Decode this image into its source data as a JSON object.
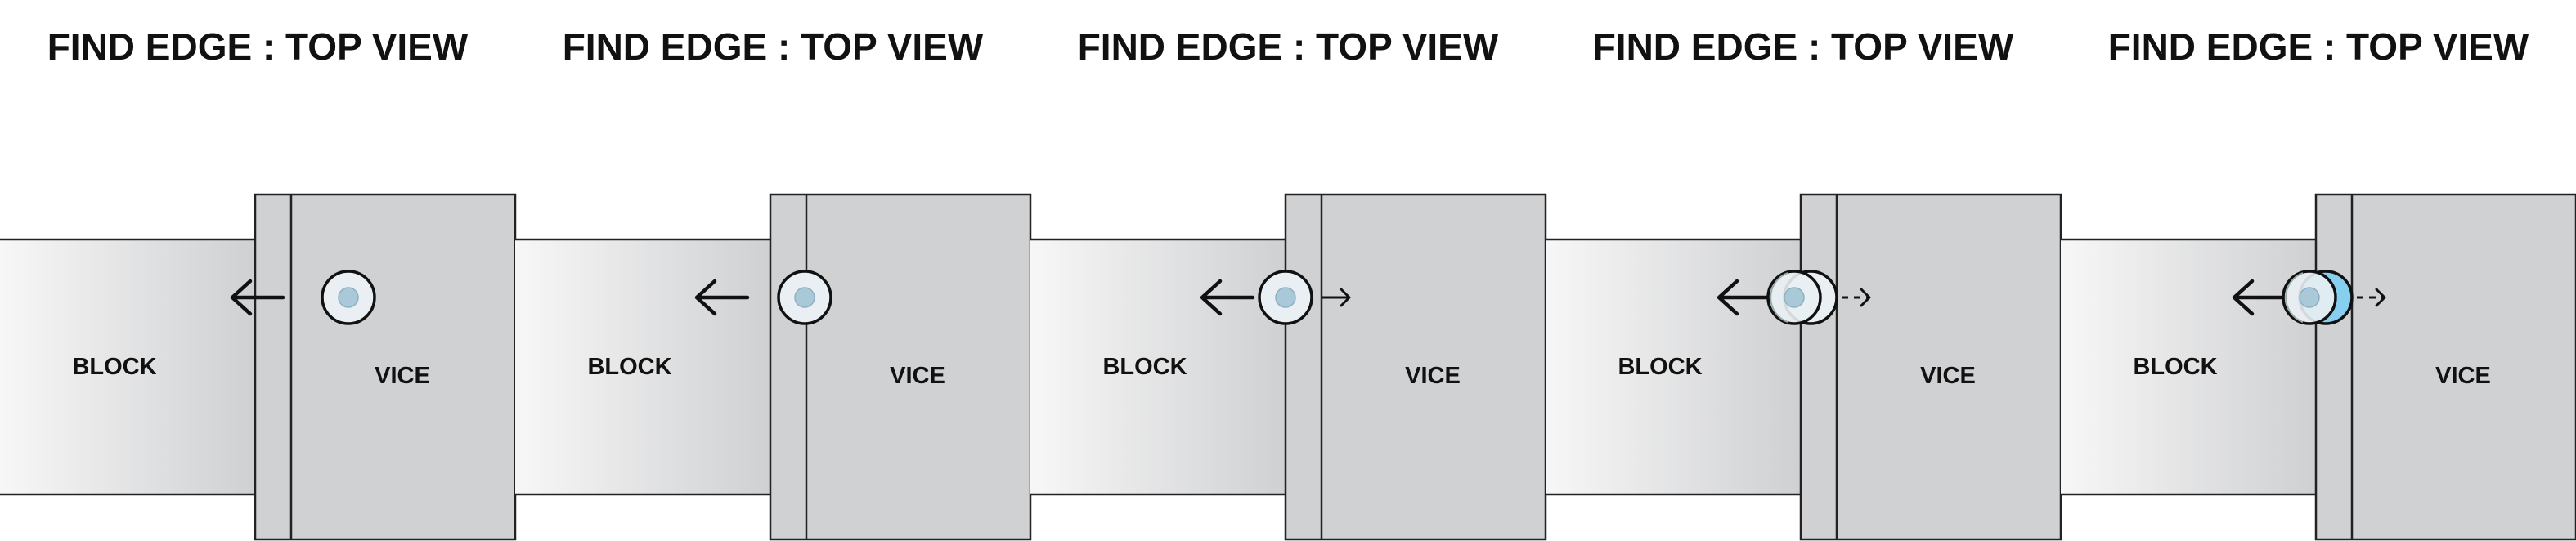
{
  "panels": [
    {
      "title": "FIND EDGE : TOP VIEW",
      "block_label": "BLOCK",
      "vice_label": "VICE",
      "step": "probe-away-from-edge"
    },
    {
      "title": "FIND EDGE : TOP VIEW",
      "block_label": "BLOCK",
      "vice_label": "VICE",
      "step": "probe-at-edge"
    },
    {
      "title": "FIND EDGE : TOP VIEW",
      "block_label": "BLOCK",
      "vice_label": "VICE",
      "step": "probe-contact"
    },
    {
      "title": "FIND EDGE : TOP VIEW",
      "block_label": "BLOCK",
      "vice_label": "VICE",
      "step": "probe-deflecting"
    },
    {
      "title": "FIND EDGE : TOP VIEW",
      "block_label": "BLOCK",
      "vice_label": "VICE",
      "step": "probe-kicked"
    }
  ],
  "icons": {
    "move_arrow": "left-arrow-icon",
    "deflect_arrow": "right-arrow-icon",
    "probe": "edge-finder-probe-icon"
  },
  "colors": {
    "block_gradient_dark": "#cfd0d2",
    "block_gradient_light": "#f7f7f7",
    "vice": "#d0d1d3",
    "outline": "#222222",
    "probe_fill": "#e9eff3",
    "probe_center": "#a9c8d8",
    "probe_kick": "#87cfee"
  }
}
